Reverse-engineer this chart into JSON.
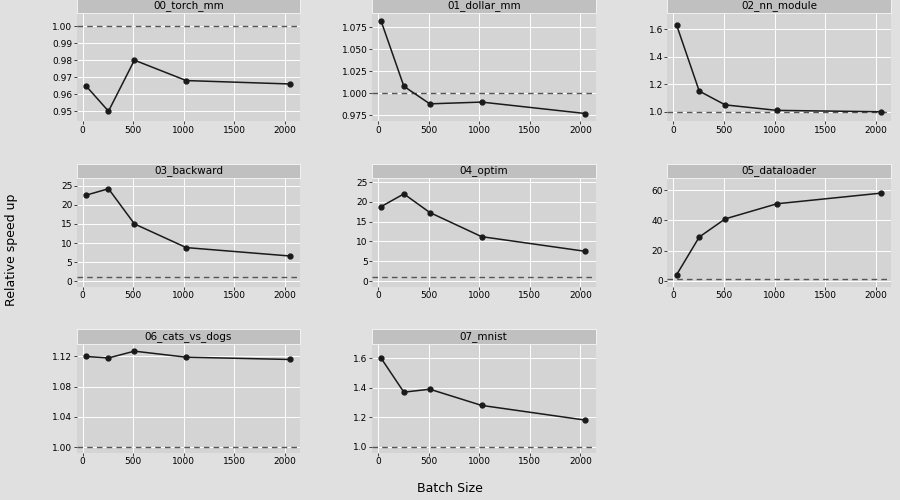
{
  "subplots": [
    {
      "title": "00_torch_mm",
      "x": [
        32,
        256,
        512,
        1024,
        2048
      ],
      "y": [
        0.965,
        0.95,
        0.98,
        0.968,
        0.966
      ],
      "ylim": [
        0.944,
        1.008
      ],
      "yticks": [
        0.95,
        0.96,
        0.97,
        0.98,
        0.99,
        1.0
      ],
      "yticklabels": [
        "0.95",
        "0.96",
        "0.97",
        "0.98",
        "0.99",
        "1.00"
      ],
      "hline": 1.0
    },
    {
      "title": "01_dollar_mm",
      "x": [
        32,
        256,
        512,
        1024,
        2048
      ],
      "y": [
        1.082,
        1.008,
        0.988,
        0.99,
        0.977
      ],
      "ylim": [
        0.968,
        1.092
      ],
      "yticks": [
        0.975,
        1.0,
        1.025,
        1.05,
        1.075
      ],
      "yticklabels": [
        "0.975",
        "1.000",
        "1.025",
        "1.050",
        "1.075"
      ],
      "hline": 1.0
    },
    {
      "title": "02_nn_module",
      "x": [
        32,
        256,
        512,
        1024,
        2048
      ],
      "y": [
        1.63,
        1.15,
        1.05,
        1.01,
        1.0
      ],
      "ylim": [
        0.93,
        1.72
      ],
      "yticks": [
        1.0,
        1.2,
        1.4,
        1.6
      ],
      "yticklabels": [
        "1.0",
        "1.2",
        "1.4",
        "1.6"
      ],
      "hline": 1.0
    },
    {
      "title": "03_backward",
      "x": [
        32,
        256,
        512,
        1024,
        2048
      ],
      "y": [
        22.5,
        24.2,
        15.0,
        8.8,
        6.6
      ],
      "ylim": [
        -1.5,
        27
      ],
      "yticks": [
        0,
        5,
        10,
        15,
        20,
        25
      ],
      "yticklabels": [
        "0",
        "5",
        "10",
        "15",
        "20",
        "25"
      ],
      "hline": 1.0
    },
    {
      "title": "04_optim",
      "x": [
        32,
        256,
        512,
        1024,
        2048
      ],
      "y": [
        18.8,
        22.0,
        17.3,
        11.2,
        7.5
      ],
      "ylim": [
        -1.5,
        26
      ],
      "yticks": [
        0,
        5,
        10,
        15,
        20,
        25
      ],
      "yticklabels": [
        "0",
        "5",
        "10",
        "15",
        "20",
        "25"
      ],
      "hline": 1.0
    },
    {
      "title": "05_dataloader",
      "x": [
        32,
        256,
        512,
        1024,
        2048
      ],
      "y": [
        4.0,
        29.0,
        41.0,
        51.0,
        58.0
      ],
      "ylim": [
        -4,
        68
      ],
      "yticks": [
        0,
        20,
        40,
        60
      ],
      "yticklabels": [
        "0",
        "20",
        "40",
        "60"
      ],
      "hline": 1.0
    },
    {
      "title": "06_cats_vs_dogs",
      "x": [
        32,
        256,
        512,
        1024,
        2048
      ],
      "y": [
        1.12,
        1.118,
        1.127,
        1.119,
        1.116
      ],
      "ylim": [
        0.993,
        1.137
      ],
      "yticks": [
        1.0,
        1.04,
        1.08,
        1.12
      ],
      "yticklabels": [
        "1.00",
        "1.04",
        "1.08",
        "1.12"
      ],
      "hline": 1.0
    },
    {
      "title": "07_mnist",
      "x": [
        32,
        256,
        512,
        1024,
        2048
      ],
      "y": [
        1.6,
        1.37,
        1.39,
        1.28,
        1.18
      ],
      "ylim": [
        0.96,
        1.7
      ],
      "yticks": [
        1.0,
        1.2,
        1.4,
        1.6
      ],
      "yticklabels": [
        "1.0",
        "1.2",
        "1.4",
        "1.6"
      ],
      "hline": 1.0
    }
  ],
  "xlabel": "Batch Size",
  "ylabel": "Relative speed up",
  "outer_bg": "#e0e0e0",
  "plot_bg_color": "#d4d4d4",
  "strip_bg_color": "#c0c0c0",
  "line_color": "#1a1a1a",
  "hline_color": "#555555",
  "grid_color": "#ffffff"
}
